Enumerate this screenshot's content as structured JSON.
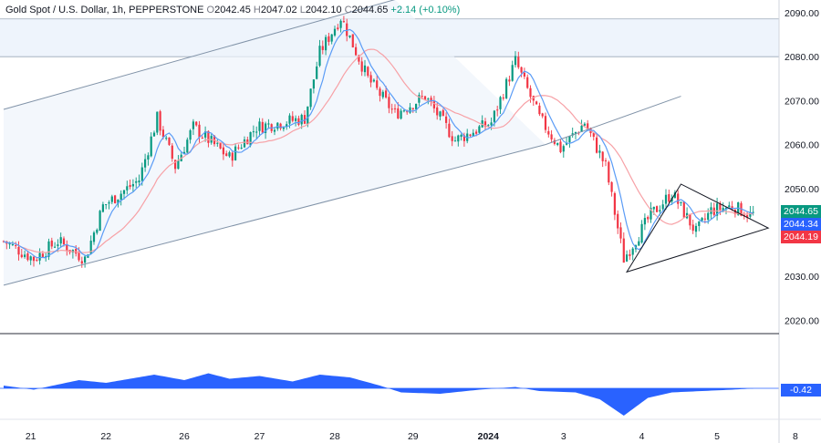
{
  "header": {
    "symbol": "Gold Spot / U.S. Dollar, 1h, PEPPERSTONE",
    "open_label": "O",
    "open": "2042.45",
    "high_label": "H",
    "high": "2047.02",
    "low_label": "L",
    "low": "2042.10",
    "close_label": "C",
    "close": "2044.65",
    "change": "+2.14 (+0.10%)"
  },
  "price_tags": {
    "last": "2044.65",
    "ma_fast": "2044.34",
    "ma_slow": "2044.19",
    "oscillator": "-0.42"
  },
  "colors": {
    "bull": "#089981",
    "bear": "#f23645",
    "ma_fast": "#5b9cf6",
    "ma_slow": "#f7a1a6",
    "oscillator": "#2962ff",
    "channel": "#8193a8",
    "channel_fill": "#eef3fb",
    "zone_fill": "#eef4fc",
    "pattern": "#131722"
  },
  "chart_data": [
    {
      "type": "candlestick",
      "title": "Gold Spot / U.S. Dollar, 1h, PEPPERSTONE",
      "ylim": [
        2014,
        2092
      ],
      "y_ticks": [
        2020,
        2030,
        2040,
        2050,
        2060,
        2070,
        2080,
        2090
      ],
      "y_tick_labels": [
        "2020.00",
        "2030.00",
        "2040.00",
        "2050.00",
        "2060.00",
        "2070.00",
        "2080.00",
        "2090.00"
      ],
      "x_tick_labels": [
        "21",
        "22",
        "26",
        "27",
        "28",
        "29",
        "2024",
        "3",
        "4",
        "5",
        "8"
      ],
      "x_tick_bars": [
        9,
        34,
        60,
        85,
        110,
        136,
        161,
        186,
        212,
        237,
        263
      ],
      "bar_count": 250,
      "anchors": [
        [
          0,
          2038
        ],
        [
          10,
          2034
        ],
        [
          18,
          2038
        ],
        [
          27,
          2034
        ],
        [
          33,
          2046
        ],
        [
          45,
          2052
        ],
        [
          51,
          2066
        ],
        [
          57,
          2055
        ],
        [
          63,
          2064
        ],
        [
          75,
          2057
        ],
        [
          84,
          2064
        ],
        [
          100,
          2066
        ],
        [
          105,
          2081
        ],
        [
          112,
          2089
        ],
        [
          121,
          2075
        ],
        [
          130,
          2067
        ],
        [
          140,
          2071
        ],
        [
          150,
          2061
        ],
        [
          162,
          2065
        ],
        [
          170,
          2079
        ],
        [
          178,
          2066
        ],
        [
          185,
          2059
        ],
        [
          193,
          2065
        ],
        [
          200,
          2055
        ],
        [
          206,
          2034
        ],
        [
          215,
          2044
        ],
        [
          222,
          2049
        ],
        [
          230,
          2040
        ],
        [
          235,
          2045
        ],
        [
          242,
          2046
        ],
        [
          248,
          2044
        ]
      ],
      "series": [
        {
          "name": "",
          "type": "candles"
        },
        {
          "name": "",
          "type": "ma_fast",
          "last": 2044.34
        },
        {
          "name": "",
          "type": "ma_slow",
          "last": 2044.19
        }
      ],
      "last_close": 2044.65,
      "drawings": {
        "resistance_zone": [
          2080,
          2088.6
        ],
        "channel_lower": [
          [
            0,
            2028
          ],
          [
            180,
            2060
          ]
        ],
        "channel_upper": [
          [
            0,
            2068
          ],
          [
            130,
            2093
          ]
        ],
        "channel_lower_ext": [
          [
            180,
            2060
          ],
          [
            225,
            2071
          ]
        ],
        "triangle": [
          [
            207,
            2031
          ],
          [
            225,
            2051
          ],
          [
            254,
            2046
          ]
        ],
        "triangle_apex": [
          254,
          2041
        ]
      }
    },
    {
      "type": "area",
      "series": [
        {
          "name": "",
          "values_anchor": [
            [
              0,
              0.2
            ],
            [
              10,
              -0.1
            ],
            [
              25,
              0.6
            ],
            [
              34,
              0.4
            ],
            [
              50,
              1.0
            ],
            [
              60,
              0.6
            ],
            [
              68,
              1.1
            ],
            [
              75,
              0.7
            ],
            [
              85,
              0.9
            ],
            [
              96,
              0.5
            ],
            [
              105,
              1.0
            ],
            [
              115,
              0.8
            ],
            [
              125,
              0.2
            ],
            [
              132,
              -0.3
            ],
            [
              145,
              -0.4
            ],
            [
              158,
              -0.1
            ],
            [
              170,
              0.1
            ],
            [
              178,
              -0.2
            ],
            [
              190,
              -0.3
            ],
            [
              198,
              -0.8
            ],
            [
              206,
              -2.0
            ],
            [
              214,
              -0.7
            ],
            [
              222,
              -0.3
            ],
            [
              232,
              -0.2
            ],
            [
              242,
              -0.1
            ],
            [
              248,
              -0.02
            ]
          ]
        }
      ],
      "last": -0.42,
      "ylim": [
        -2.2,
        1.4
      ]
    }
  ]
}
